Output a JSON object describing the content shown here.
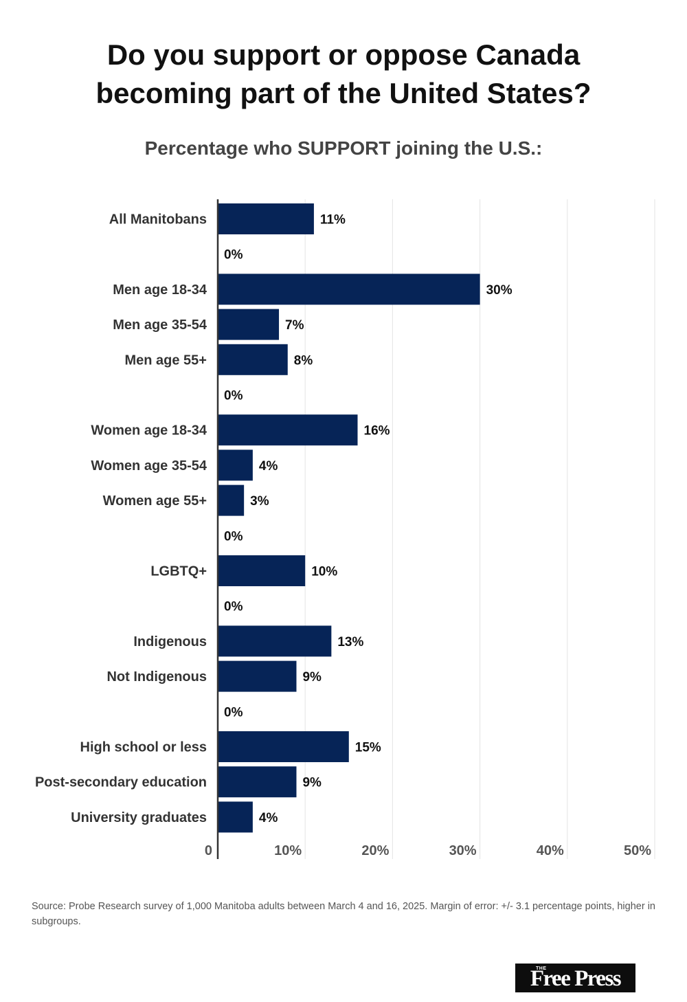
{
  "title_line1": "Do you support or oppose Canada",
  "title_line2": "becoming part of the United States?",
  "subtitle": "Percentage who SUPPORT joining the U.S.:",
  "source": "Source: Probe Research survey of 1,000 Manitoba adults between March 4 and 16, 2025. Margin of error: +/- 3.1 percentage points, higher in subgroups.",
  "logo": {
    "small": "THE",
    "name": "Free Press"
  },
  "chart_data": {
    "type": "bar",
    "orientation": "horizontal",
    "categories": [
      "All Manitobans",
      "",
      "Men age 18-34",
      "Men age 35-54",
      "Men age 55+",
      "",
      "Women age 18-34",
      "Women age 35-54",
      "Women age 55+",
      "",
      "LGBTQ+",
      "",
      "Indigenous",
      "Not Indigenous",
      "",
      "High school or less",
      "Post-secondary education",
      "University graduates"
    ],
    "values": [
      11,
      0,
      30,
      7,
      8,
      0,
      16,
      4,
      3,
      0,
      10,
      0,
      13,
      9,
      0,
      15,
      9,
      4
    ],
    "data_labels": [
      "11%",
      "0%",
      "30%",
      "7%",
      "8%",
      "0%",
      "16%",
      "4%",
      "3%",
      "0%",
      "10%",
      "0%",
      "13%",
      "9%",
      "0%",
      "15%",
      "9%",
      "4%"
    ],
    "xlim": [
      0,
      50
    ],
    "xticks": [
      0,
      10,
      20,
      30,
      40,
      50
    ],
    "xtick_labels": [
      "0",
      "10%",
      "20%",
      "30%",
      "40%",
      "50%"
    ],
    "bar_color": "#062457",
    "grid": true
  }
}
